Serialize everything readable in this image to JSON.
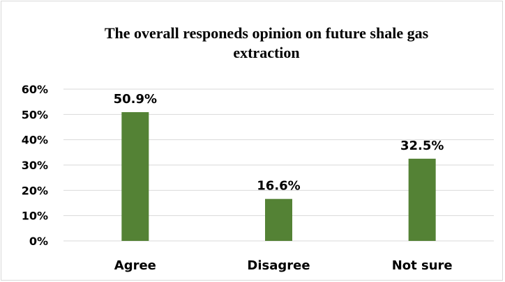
{
  "chart_data": {
    "type": "bar",
    "title": "The overall responeds opinion on future shale gas extraction",
    "title_lines": [
      "The overall responeds opinion on future shale gas",
      "extraction"
    ],
    "categories": [
      "Agree",
      "Disagree",
      "Not sure"
    ],
    "values": [
      50.9,
      16.6,
      32.5
    ],
    "value_labels": [
      "50.9%",
      "16.6%",
      "32.5%"
    ],
    "unit": "%",
    "xlabel": "",
    "ylabel": "",
    "ylim": [
      0,
      60
    ],
    "yticks": [
      0,
      10,
      20,
      30,
      40,
      50,
      60
    ],
    "ytick_labels": [
      "0%",
      "10%",
      "20%",
      "30%",
      "40%",
      "50%",
      "60%"
    ],
    "grid": true,
    "legend": "none",
    "bar_color": "#548235",
    "grid_color": "#d9d9d9"
  }
}
